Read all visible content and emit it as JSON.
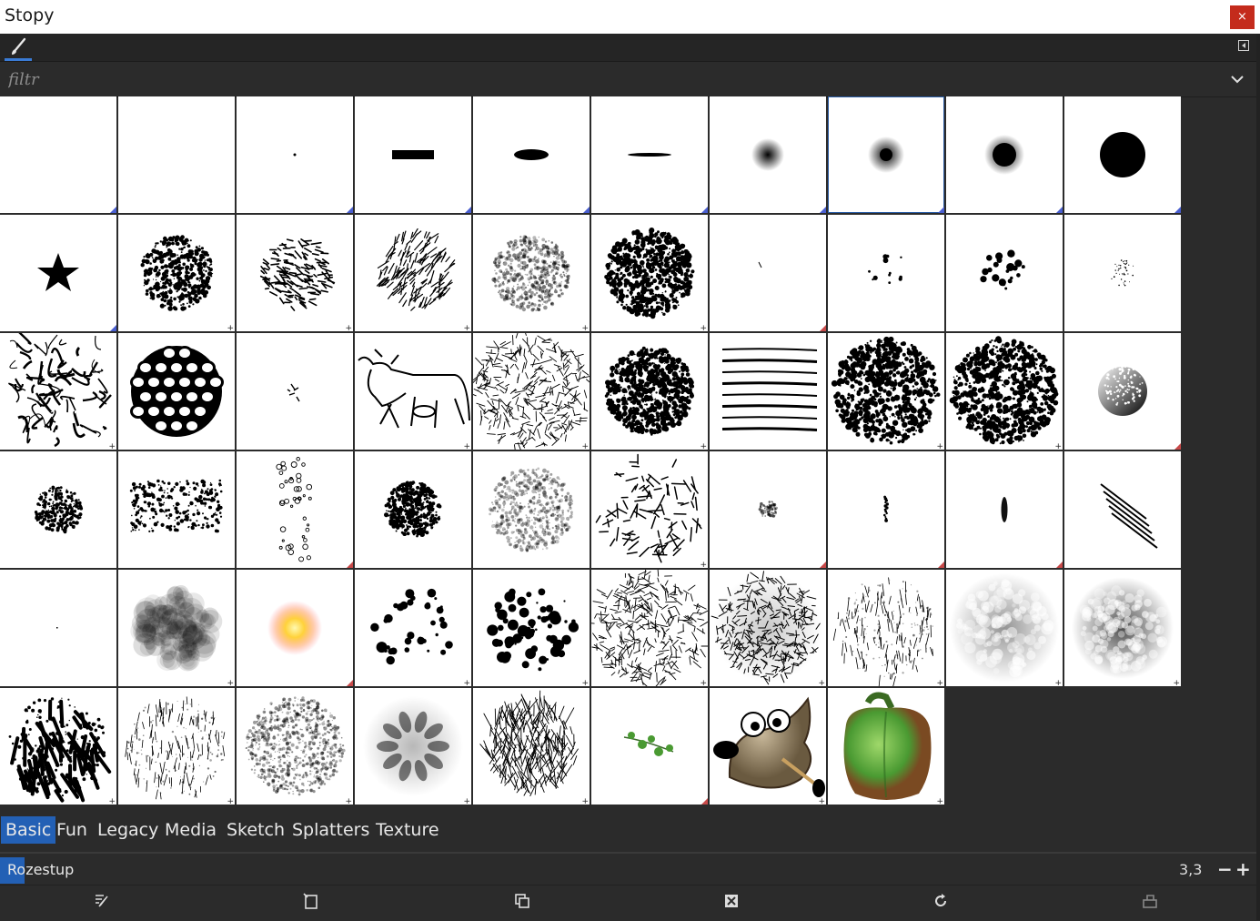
{
  "window": {
    "title": "Stopy",
    "close_glyph": "×"
  },
  "toolbar": {
    "active_tab_icon": "paintbrush-icon",
    "menu_icon": "panel-menu-icon"
  },
  "filter": {
    "placeholder": "filtr",
    "value": ""
  },
  "brush_grid": {
    "selected_index": 7,
    "cells": [
      {
        "icon": "empty",
        "marker": "tri-blue"
      },
      {
        "icon": "empty",
        "marker": "none"
      },
      {
        "icon": "pixel-dot",
        "marker": "tri-blue"
      },
      {
        "icon": "block-rect",
        "marker": "tri-blue"
      },
      {
        "icon": "small-ellipse",
        "marker": "tri-blue"
      },
      {
        "icon": "thin-ellipse",
        "marker": "tri-blue"
      },
      {
        "icon": "soft-dot-small",
        "marker": "tri-blue"
      },
      {
        "icon": "soft-dot-medium",
        "marker": "tri-blue"
      },
      {
        "icon": "soft-dot-large",
        "marker": "tri-blue"
      },
      {
        "icon": "hard-circle",
        "marker": "tri-blue"
      },
      {
        "icon": "star",
        "marker": "tri-blue"
      },
      {
        "icon": "acrylic-splat",
        "marker": "plus"
      },
      {
        "icon": "chalk-strokes",
        "marker": "plus"
      },
      {
        "icon": "hatch-strokes",
        "marker": "plus"
      },
      {
        "icon": "gray-splat",
        "marker": "plus"
      },
      {
        "icon": "ink-splat",
        "marker": "plus"
      },
      {
        "icon": "tiny-stroke",
        "marker": "tri-red"
      },
      {
        "icon": "few-dots",
        "marker": "none"
      },
      {
        "icon": "dot-cluster",
        "marker": "none"
      },
      {
        "icon": "fine-dots",
        "marker": "none"
      },
      {
        "icon": "cracks",
        "marker": "plus"
      },
      {
        "icon": "cells",
        "marker": "none"
      },
      {
        "icon": "scribbles",
        "marker": "none"
      },
      {
        "icon": "cave-painting",
        "marker": "plus"
      },
      {
        "icon": "grunge-lines",
        "marker": "plus"
      },
      {
        "icon": "ink-splat",
        "marker": "plus"
      },
      {
        "icon": "horizontal-lines",
        "marker": "none"
      },
      {
        "icon": "spotted-texture",
        "marker": "plus"
      },
      {
        "icon": "spotted-texture",
        "marker": "plus"
      },
      {
        "icon": "speckled-circle",
        "marker": "tri-red"
      },
      {
        "icon": "rough-blob-small",
        "marker": "none"
      },
      {
        "icon": "rough-blob-wide",
        "marker": "none"
      },
      {
        "icon": "scattered-glyphs",
        "marker": "tri-red"
      },
      {
        "icon": "speckled-ball",
        "marker": "none"
      },
      {
        "icon": "dry-wash",
        "marker": "none"
      },
      {
        "icon": "scratches",
        "marker": "plus"
      },
      {
        "icon": "small-smudge",
        "marker": "tri-red"
      },
      {
        "icon": "dot-column",
        "marker": "tri-red"
      },
      {
        "icon": "dark-smudge",
        "marker": "tri-red"
      },
      {
        "icon": "diagonal-lines",
        "marker": "none"
      },
      {
        "icon": "single-pixel",
        "marker": "none"
      },
      {
        "icon": "cloud",
        "marker": "plus"
      },
      {
        "icon": "glow-sun",
        "marker": "tri-red"
      },
      {
        "icon": "ink-spots",
        "marker": "plus"
      },
      {
        "icon": "ink-spots-dense",
        "marker": "plus"
      },
      {
        "icon": "grunge-lines",
        "marker": "plus"
      },
      {
        "icon": "grunge-ball",
        "marker": "plus"
      },
      {
        "icon": "light-cracks",
        "marker": "plus"
      },
      {
        "icon": "crumpled-paper",
        "marker": "plus"
      },
      {
        "icon": "crumpled-paper-dark",
        "marker": "plus"
      },
      {
        "icon": "bark-texture",
        "marker": "plus"
      },
      {
        "icon": "light-cracks",
        "marker": "plus"
      },
      {
        "icon": "paper-rub",
        "marker": "plus"
      },
      {
        "icon": "blurry-petals",
        "marker": "plus"
      },
      {
        "icon": "grass",
        "marker": "plus"
      },
      {
        "icon": "green-vine",
        "marker": "tri-red"
      },
      {
        "icon": "wilber-mascot",
        "marker": "plus"
      },
      {
        "icon": "green-pepper",
        "marker": "plus"
      }
    ]
  },
  "tabs": [
    {
      "label": "Basic",
      "active": true
    },
    {
      "label": "Fun",
      "active": false
    },
    {
      "label": "Legacy",
      "active": false
    },
    {
      "label": "Media",
      "active": false
    },
    {
      "label": "Sketch",
      "active": false
    },
    {
      "label": "Splatters",
      "active": false
    },
    {
      "label": "Texture",
      "active": false
    }
  ],
  "spacing": {
    "label": "Rozestup",
    "value": "3,3",
    "minus": "−",
    "plus": "+"
  },
  "bottom_actions": [
    {
      "name": "edit-brush-button",
      "icon": "edit-brush-icon"
    },
    {
      "name": "new-brush-button",
      "icon": "new-brush-icon"
    },
    {
      "name": "duplicate-brush-button",
      "icon": "duplicate-brush-icon"
    },
    {
      "name": "delete-brush-button",
      "icon": "delete-brush-icon"
    },
    {
      "name": "refresh-brushes-button",
      "icon": "refresh-icon"
    },
    {
      "name": "open-as-image-button",
      "icon": "open-as-image-icon"
    }
  ],
  "colors": {
    "accent": "#2360b5",
    "panel": "#2b2b2b",
    "close": "#c42b1c",
    "marker_blue": "#4a5fd0",
    "marker_red": "#c84a4a"
  }
}
